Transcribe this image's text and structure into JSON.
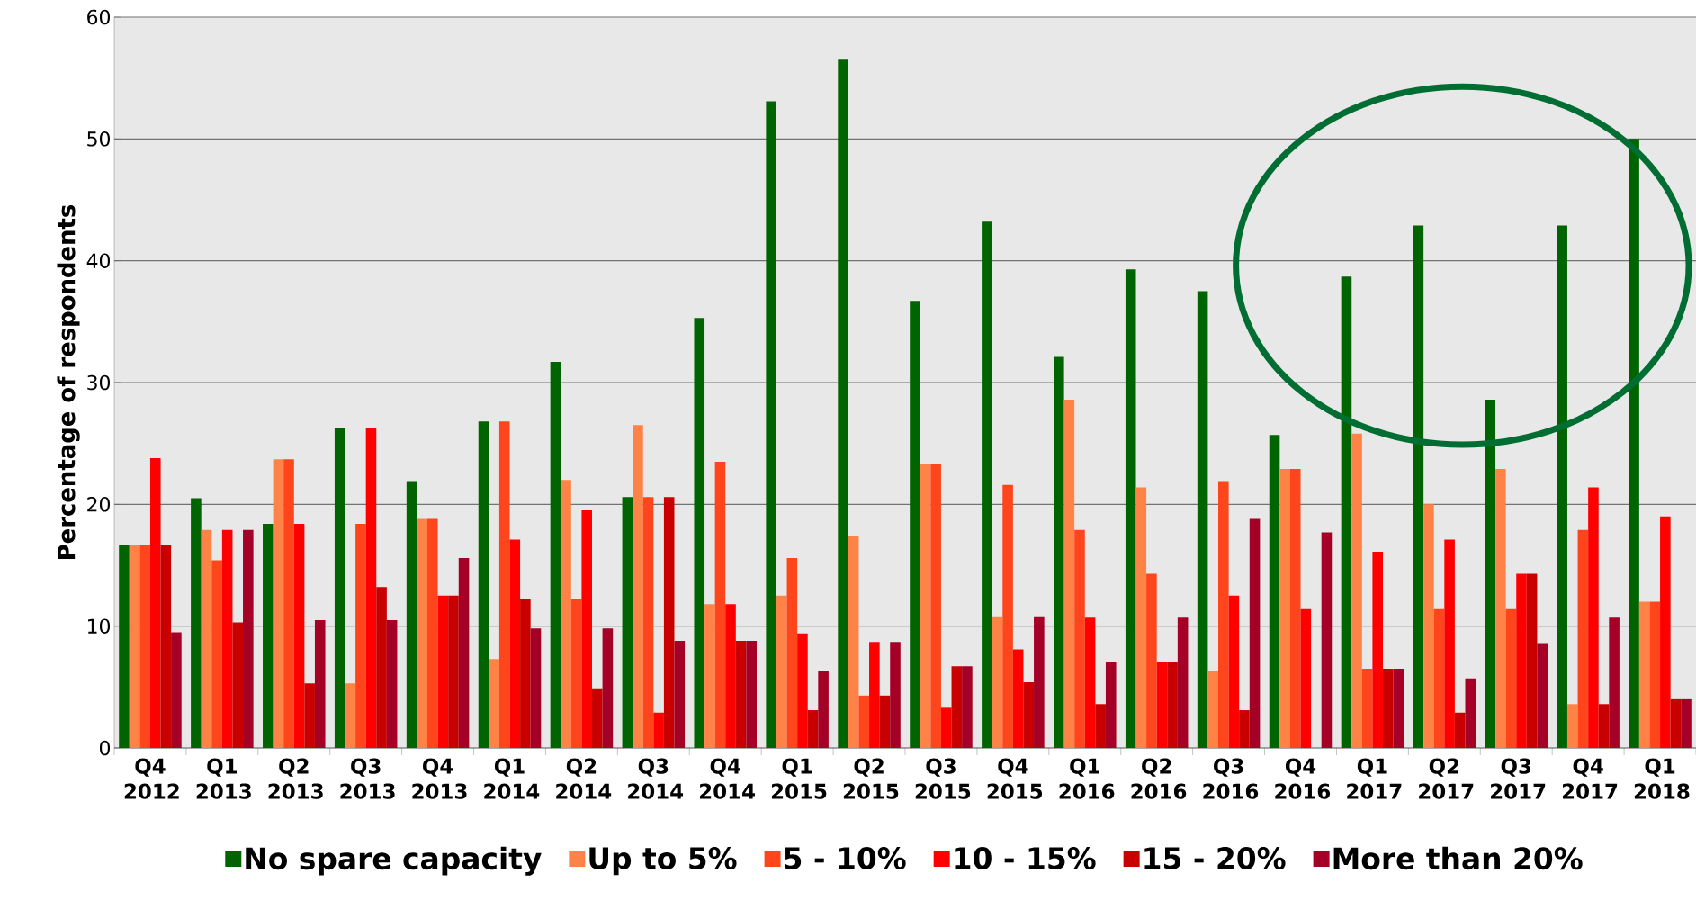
{
  "chart_data": {
    "type": "bar",
    "ylabel": "Percentage of respondents",
    "categories": [
      "Q4 2012",
      "Q1 2013",
      "Q2 2013",
      "Q3 2013",
      "Q4 2013",
      "Q1 2014",
      "Q2 2014",
      "Q3 2014",
      "Q4 2014",
      "Q1 2015",
      "Q2 2015",
      "Q3 2015",
      "Q4 2015",
      "Q1 2016",
      "Q2 2016",
      "Q3 2016",
      "Q4 2016",
      "Q1 2017",
      "Q2 2017",
      "Q3 2017",
      "Q4 2017",
      "Q1 2018"
    ],
    "series": [
      {
        "name": "No spare capacity",
        "color": "#006400",
        "values": [
          16.7,
          20.5,
          18.4,
          26.3,
          21.9,
          26.8,
          31.7,
          20.6,
          35.3,
          53.1,
          56.5,
          36.7,
          43.2,
          32.1,
          39.3,
          37.5,
          25.7,
          38.7,
          42.9,
          28.6,
          42.9,
          50.0
        ]
      },
      {
        "name": "Up to 5%",
        "color": "#ff8347",
        "values": [
          16.7,
          17.9,
          23.7,
          5.3,
          18.8,
          7.3,
          22.0,
          26.5,
          11.8,
          12.5,
          17.4,
          23.3,
          10.8,
          28.6,
          21.4,
          6.3,
          22.9,
          25.8,
          20.0,
          22.9,
          3.6,
          12.0
        ]
      },
      {
        "name": "5 - 10%",
        "color": "#ff451c",
        "values": [
          16.7,
          15.4,
          23.7,
          18.4,
          18.8,
          26.8,
          12.2,
          20.6,
          23.5,
          15.6,
          4.3,
          23.3,
          21.6,
          17.9,
          14.3,
          21.9,
          22.9,
          6.5,
          11.4,
          11.4,
          17.9,
          12.0
        ]
      },
      {
        "name": "10 - 15%",
        "color": "#ff0000",
        "values": [
          23.8,
          17.9,
          18.4,
          26.3,
          12.5,
          17.1,
          19.5,
          2.9,
          11.8,
          9.4,
          8.7,
          3.3,
          8.1,
          10.7,
          7.1,
          12.5,
          11.4,
          16.1,
          17.1,
          14.3,
          21.4,
          19.0
        ]
      },
      {
        "name": "15 - 20%",
        "color": "#c80000",
        "values": [
          16.7,
          10.3,
          5.3,
          13.2,
          12.5,
          12.2,
          4.9,
          20.6,
          8.8,
          3.1,
          4.3,
          6.7,
          5.4,
          3.6,
          7.1,
          3.1,
          0,
          6.5,
          2.9,
          14.3,
          3.6,
          4.0
        ]
      },
      {
        "name": "More than 20%",
        "color": "#a50026",
        "values": [
          9.5,
          17.9,
          10.5,
          10.5,
          15.6,
          9.8,
          9.8,
          8.8,
          8.8,
          6.3,
          8.7,
          6.7,
          10.8,
          7.1,
          10.7,
          18.8,
          17.7,
          6.5,
          5.7,
          8.6,
          10.7,
          4.0
        ]
      }
    ],
    "ylim": [
      0,
      60
    ],
    "yticks": [
      0,
      10,
      20,
      30,
      40,
      50,
      60
    ],
    "grid": "y",
    "legend": "bottom"
  }
}
